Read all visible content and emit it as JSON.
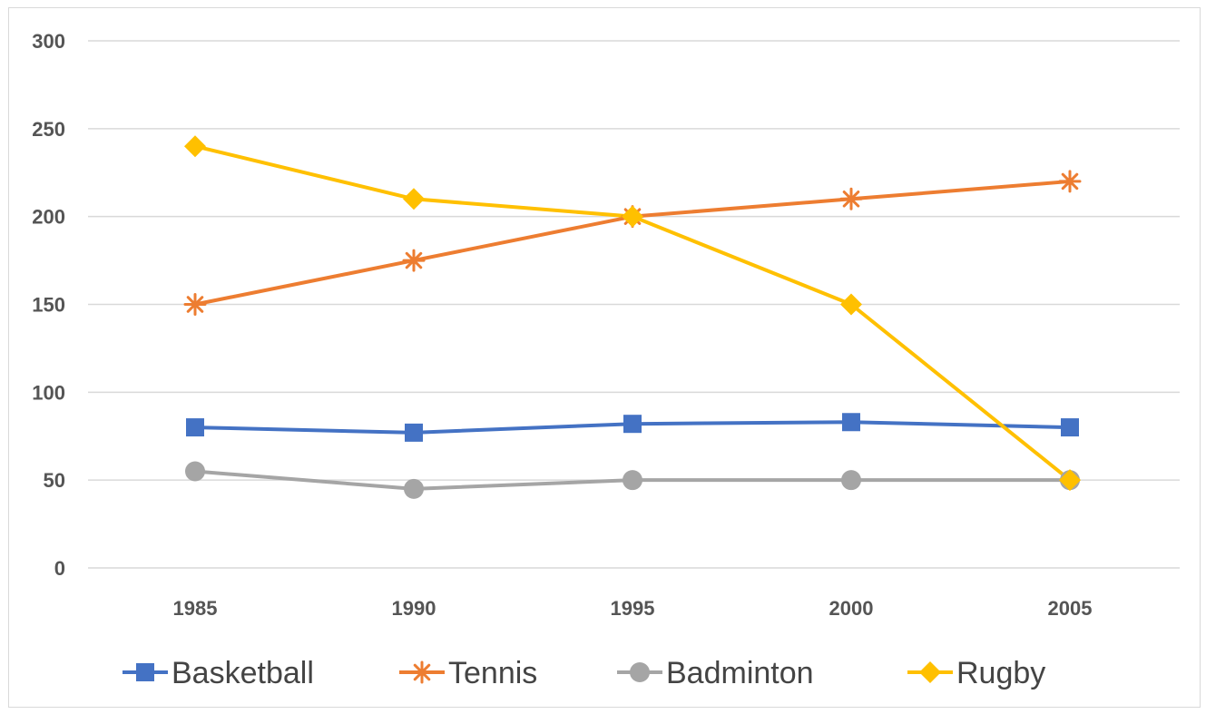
{
  "chart_data": {
    "type": "line",
    "title": "",
    "xlabel": "",
    "ylabel": "",
    "categories": [
      "1985",
      "1990",
      "1995",
      "2000",
      "2005"
    ],
    "ylim": [
      0,
      300
    ],
    "yticks": [
      0,
      50,
      100,
      150,
      200,
      250,
      300
    ],
    "grid": true,
    "legend_position": "bottom",
    "series": [
      {
        "name": "Basketball",
        "values": [
          80,
          77,
          82,
          83,
          80
        ],
        "color": "#4472c4",
        "marker": "square"
      },
      {
        "name": "Tennis",
        "values": [
          150,
          175,
          200,
          210,
          220
        ],
        "color": "#ed7d31",
        "marker": "asterisk"
      },
      {
        "name": "Badminton",
        "values": [
          55,
          45,
          50,
          50,
          50
        ],
        "color": "#a5a5a5",
        "marker": "circle"
      },
      {
        "name": "Rugby",
        "values": [
          240,
          210,
          200,
          150,
          50
        ],
        "color": "#ffc000",
        "marker": "diamond"
      }
    ]
  }
}
